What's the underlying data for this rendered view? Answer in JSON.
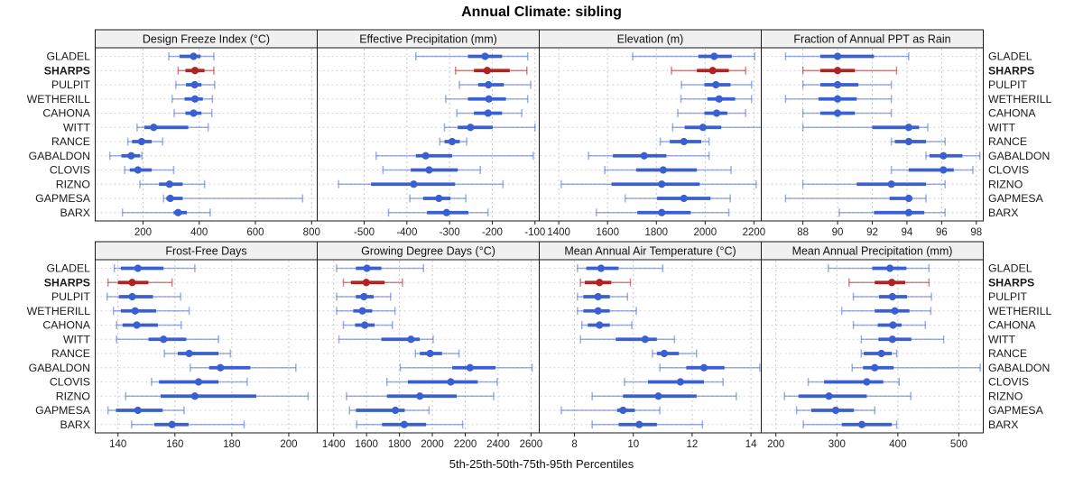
{
  "title": "Annual Climate: sibling",
  "xlabel": "5th-25th-50th-75th-95th Percentiles",
  "sites": [
    "GLADEL",
    "SHARPS",
    "PULPIT",
    "WETHERILL",
    "CAHONA",
    "WITT",
    "RANCE",
    "GABALDON",
    "CLOVIS",
    "RIZNO",
    "GAPMESA",
    "BARX"
  ],
  "highlight_site": "SHARPS",
  "colors": {
    "series": "#3A5FD1",
    "series_light": "rgba(58,95,209,0.5)",
    "highlight": "#B22222",
    "highlight_light": "rgba(178,34,34,0.55)",
    "grid": "#C9C9C9",
    "row_grid": "#D4D4D4",
    "strip_bg": "#F0F0F0",
    "border": "#1A1A1A",
    "tick_text": "#222222"
  },
  "chart_data": {
    "type": "percentile-interval-trellis",
    "percentile_labels": [
      "5th",
      "25th",
      "50th",
      "75th",
      "95th"
    ],
    "legend_position": "none",
    "grid": "dotted",
    "panels": [
      {
        "title": "Design Freeze Index (°C)",
        "xlim": [
          30,
          820
        ],
        "ticks": [
          200,
          400,
          600,
          800
        ],
        "data": [
          [
            292,
            330,
            380,
            405,
            452
          ],
          [
            325,
            351,
            385,
            419,
            452
          ],
          [
            317,
            353,
            384,
            408,
            455
          ],
          [
            304,
            348,
            385,
            413,
            447
          ],
          [
            311,
            351,
            380,
            408,
            445
          ],
          [
            179,
            205,
            238,
            361,
            432
          ],
          [
            146,
            161,
            195,
            231,
            270
          ],
          [
            82,
            123,
            158,
            190,
            196
          ],
          [
            135,
            153,
            182,
            231,
            309
          ],
          [
            189,
            257,
            294,
            341,
            419
          ],
          [
            273,
            283,
            297,
            341,
            768
          ],
          [
            127,
            309,
            325,
            356,
            439
          ]
        ]
      },
      {
        "title": "Effective Precipitation (mm)",
        "xlim": [
          -610,
          -90
        ],
        "ticks": [
          -500,
          -400,
          -300,
          -200,
          -100
        ],
        "data": [
          [
            -379,
            -257,
            -217,
            -177,
            -117
          ],
          [
            -286,
            -243,
            -212,
            -159,
            -119
          ],
          [
            -277,
            -233,
            -209,
            -173,
            -110
          ],
          [
            -309,
            -257,
            -208,
            -168,
            -117
          ],
          [
            -283,
            -243,
            -210,
            -177,
            -131
          ],
          [
            -312,
            -281,
            -251,
            -199,
            -100
          ],
          [
            -323,
            -312,
            -294,
            -276,
            -260
          ],
          [
            -472,
            -379,
            -356,
            -294,
            -104
          ],
          [
            -456,
            -391,
            -348,
            -281,
            -228
          ],
          [
            -560,
            -484,
            -384,
            -287,
            -175
          ],
          [
            -393,
            -362,
            -325,
            -298,
            -262
          ],
          [
            -443,
            -353,
            -307,
            -256,
            -210
          ]
        ]
      },
      {
        "title": "Elevation (m)",
        "xlim": [
          1320,
          2230
        ],
        "ticks": [
          1400,
          1600,
          1800,
          2000,
          2200
        ],
        "data": [
          [
            1703,
            1972,
            2037,
            2109,
            2203
          ],
          [
            1862,
            1966,
            2031,
            2097,
            2166
          ],
          [
            1903,
            1997,
            2044,
            2104,
            2190
          ],
          [
            1901,
            2009,
            2057,
            2123,
            2190
          ],
          [
            1888,
            1997,
            2047,
            2091,
            2166
          ],
          [
            1867,
            1916,
            1991,
            2066,
            2234
          ],
          [
            1816,
            1855,
            1913,
            1984,
            2016
          ],
          [
            1522,
            1622,
            1750,
            1841,
            2016
          ],
          [
            1589,
            1717,
            1828,
            1966,
            2106
          ],
          [
            1410,
            1616,
            1822,
            1978,
            2209
          ],
          [
            1672,
            1803,
            1913,
            2022,
            2103
          ],
          [
            1554,
            1722,
            1822,
            1941,
            2097
          ]
        ]
      },
      {
        "title": "Fraction of Annual PPT as Rain",
        "xlim": [
          85.6,
          98.4
        ],
        "ticks": [
          88,
          90,
          92,
          94,
          96,
          98
        ],
        "data": [
          [
            87,
            89,
            90,
            92.1,
            94.1
          ],
          [
            88,
            89,
            90,
            91,
            93.4
          ],
          [
            88,
            89,
            90,
            91.2,
            93.1
          ],
          [
            87,
            88.9,
            90,
            91.1,
            93.1
          ],
          [
            88,
            89,
            90,
            91,
            93.1
          ],
          [
            88,
            92,
            94.1,
            94.7,
            95.2
          ],
          [
            93.1,
            93.3,
            94.1,
            95.1,
            96.2
          ],
          [
            95.1,
            95.3,
            96.1,
            97.2,
            98.2
          ],
          [
            93.1,
            94.1,
            96.1,
            96.7,
            97.8
          ],
          [
            88,
            91.1,
            93.1,
            95.1,
            96.2
          ],
          [
            87,
            93,
            94.1,
            94.3,
            95.1
          ],
          [
            90.1,
            92.1,
            94.1,
            95,
            96.2
          ]
        ]
      },
      {
        "title": "Frost-Free Days",
        "xlim": [
          132,
          210
        ],
        "ticks": [
          140,
          160,
          180,
          200
        ],
        "data": [
          [
            138.7,
            141,
            147,
            156,
            167
          ],
          [
            136.5,
            140,
            145,
            150.7,
            159
          ],
          [
            136.2,
            140.3,
            145,
            152.3,
            162
          ],
          [
            138.4,
            141,
            146,
            153.4,
            165
          ],
          [
            139.5,
            141.6,
            146.6,
            154,
            162.2
          ],
          [
            139.5,
            150.7,
            156,
            164,
            175.3
          ],
          [
            156.3,
            161,
            165,
            175.3,
            179.5
          ],
          [
            165.4,
            172,
            176,
            186.5,
            202.5
          ],
          [
            151.8,
            154.4,
            168.3,
            175.3,
            185.4
          ],
          [
            142.7,
            155,
            167,
            188.6,
            206.8
          ],
          [
            136.5,
            139.3,
            147,
            155.7,
            163.2
          ],
          [
            144.8,
            152.8,
            159,
            164.8,
            184.3
          ]
        ]
      },
      {
        "title": "Growing Degree Days (°C)",
        "xlim": [
          1300,
          2650
        ],
        "ticks": [
          1400,
          1600,
          1800,
          2000,
          2200,
          2400,
          2600
        ],
        "data": [
          [
            1418,
            1535,
            1602,
            1690,
            1946
          ],
          [
            1459,
            1505,
            1598,
            1710,
            1818
          ],
          [
            1418,
            1535,
            1584,
            1643,
            1746
          ],
          [
            1418,
            1519,
            1575,
            1634,
            1773
          ],
          [
            1459,
            1530,
            1589,
            1649,
            1757
          ],
          [
            1432,
            1690,
            1870,
            1924,
            2005
          ],
          [
            1897,
            1924,
            1986,
            2059,
            2162
          ],
          [
            1805,
            2121,
            2229,
            2384,
            2607
          ],
          [
            1724,
            1851,
            2112,
            2276,
            2395
          ],
          [
            1478,
            1724,
            1924,
            2148,
            2373
          ],
          [
            1496,
            1535,
            1775,
            1832,
            1980
          ],
          [
            1540,
            1694,
            1829,
            1962,
            2184
          ]
        ]
      },
      {
        "title": "Mean Annual Air Temperature (°C)",
        "xlim": [
          6.8,
          14.35
        ],
        "ticks": [
          8,
          10,
          12,
          14
        ],
        "data": [
          [
            8.1,
            8.4,
            8.9,
            9.5,
            11
          ],
          [
            8.2,
            8.35,
            8.85,
            9.25,
            9.9
          ],
          [
            8.1,
            8.3,
            8.8,
            9.2,
            9.8
          ],
          [
            8.1,
            8.3,
            8.8,
            9.2,
            10.1
          ],
          [
            8.25,
            8.45,
            8.85,
            9.2,
            9.95
          ],
          [
            8.2,
            9.4,
            10.4,
            10.8,
            11.4
          ],
          [
            10.65,
            10.8,
            11.05,
            11.55,
            12.15
          ],
          [
            10.9,
            11.8,
            12.4,
            13.1,
            14.3
          ],
          [
            9.7,
            10.5,
            11.6,
            12.4,
            13.05
          ],
          [
            8.6,
            9.65,
            10.85,
            12.15,
            13.5
          ],
          [
            7.55,
            9.45,
            9.65,
            10.05,
            10.9
          ],
          [
            8.6,
            9.5,
            10.2,
            10.8,
            12.35
          ]
        ]
      },
      {
        "title": "Mean Annual Precipitation (mm)",
        "xlim": [
          176,
          540
        ],
        "ticks": [
          200,
          300,
          400,
          500
        ],
        "data": [
          [
            286,
            358,
            387,
            414,
            451
          ],
          [
            320,
            362,
            390,
            412,
            451
          ],
          [
            327,
            369,
            391,
            415,
            455
          ],
          [
            308,
            362,
            395,
            419,
            454
          ],
          [
            327,
            367,
            392,
            406,
            445
          ],
          [
            340,
            368,
            391,
            422,
            475
          ],
          [
            340,
            344,
            373,
            390,
            398
          ],
          [
            325,
            343,
            362,
            393,
            535
          ],
          [
            253,
            279,
            349,
            376,
            402
          ],
          [
            214,
            237,
            287,
            349,
            421
          ],
          [
            234,
            258,
            298,
            328,
            362
          ],
          [
            245,
            308,
            341,
            390,
            398
          ]
        ]
      }
    ]
  }
}
